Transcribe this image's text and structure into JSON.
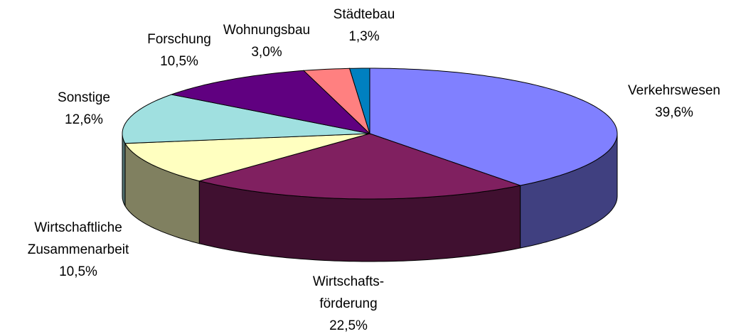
{
  "chart_data": {
    "type": "pie3d",
    "categories": [
      "Verkehrswesen",
      "Wirtschafts-\nförderung",
      "Wirtschaftliche\nZusammenarbeit",
      "Sonstige",
      "Forschung",
      "Wohnungsbau",
      "Städtebau"
    ],
    "values": [
      39.6,
      22.5,
      10.5,
      12.6,
      10.5,
      3.0,
      1.3
    ],
    "value_labels": [
      "39,6%",
      "22,5%",
      "10,5%",
      "12,6%",
      "10,5%",
      "3,0%",
      "1,3%"
    ],
    "colors": [
      "#8080ff",
      "#802060",
      "#ffffc0",
      "#a0e0e0",
      "#600080",
      "#ff8080",
      "#0080c0"
    ]
  }
}
